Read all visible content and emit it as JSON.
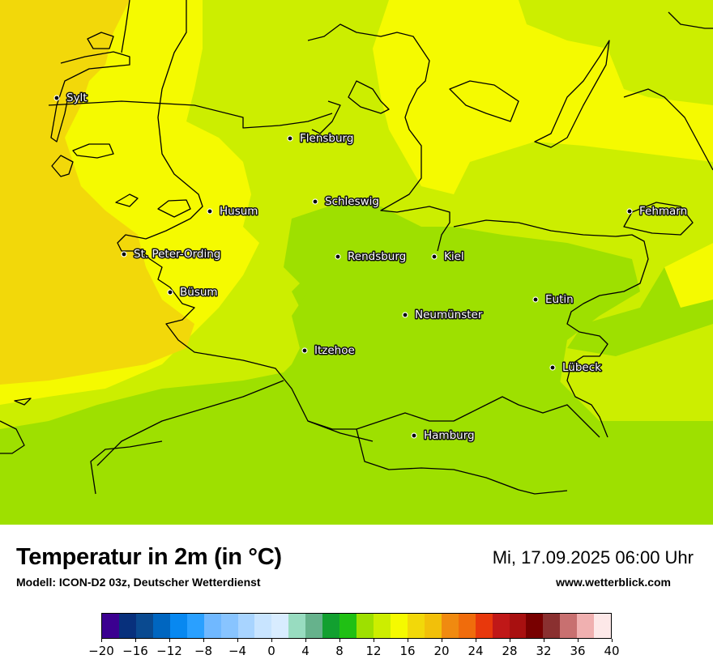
{
  "map": {
    "cities": [
      {
        "name": "Sylt"
      },
      {
        "name": "Flensburg"
      },
      {
        "name": "Schleswig"
      },
      {
        "name": "Husum"
      },
      {
        "name": "Fehmarn"
      },
      {
        "name": "Rendsburg"
      },
      {
        "name": "Kiel"
      },
      {
        "name": "St. Peter-Ording"
      },
      {
        "name": "Büsum"
      },
      {
        "name": "Eutin"
      },
      {
        "name": "Neumünster"
      },
      {
        "name": "Itzehoe"
      },
      {
        "name": "Lübeck"
      },
      {
        "name": "Hamburg"
      }
    ],
    "field_colors": {
      "t18": "#f2d80a",
      "t16": "#f5fa00",
      "t14": "#ccee00",
      "t12": "#9ee000"
    }
  },
  "footer": {
    "title": "Temperatur in 2m (in °C)",
    "model": "Modell: ICON-D2 03z, Deutscher Wetterdienst",
    "datetime": "Mi, 17.09.2025 06:00 Uhr",
    "website": "www.wetterblick.com"
  },
  "legend": {
    "colors": [
      "#3b0090",
      "#08307c",
      "#0a4a90",
      "#0066c0",
      "#0888f0",
      "#2aa0ff",
      "#70b8ff",
      "#88c4ff",
      "#a8d4ff",
      "#c8e4ff",
      "#d8ecff",
      "#98dcc0",
      "#66b28c",
      "#12a030",
      "#20c014",
      "#9ee000",
      "#ccee00",
      "#f5fa00",
      "#f2d80a",
      "#f2c00a",
      "#f08a10",
      "#f06c0c",
      "#e8380c",
      "#c01818",
      "#a81010",
      "#780000",
      "#8a3030",
      "#c87070",
      "#f0b0b0",
      "#fde8e8"
    ],
    "ticks": [
      "−20",
      "−16",
      "−12",
      "−8",
      "−4",
      "0",
      "4",
      "8",
      "12",
      "16",
      "20",
      "24",
      "28",
      "32",
      "36",
      "40"
    ]
  }
}
